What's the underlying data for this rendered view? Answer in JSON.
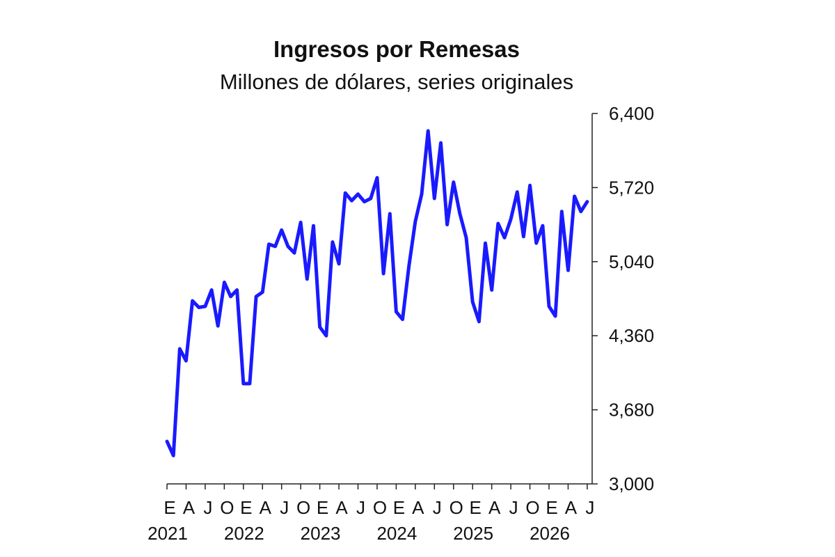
{
  "chart_data": {
    "type": "line",
    "title": "Ingresos por Remesas",
    "subtitle": "Millones de dólares, series originales",
    "xlabel": "",
    "ylabel": "",
    "ylim": [
      3000,
      6400
    ],
    "y_ticks": [
      "3,000",
      "3,680",
      "4,360",
      "5,040",
      "5,720",
      "6,400"
    ],
    "y_tick_values": [
      3000,
      3680,
      4360,
      5040,
      5720,
      6400
    ],
    "axis_side": "right",
    "grid": false,
    "legend": "none",
    "color": "#1a1aff",
    "month_labels": [
      "E",
      "A",
      "J",
      "O",
      "E",
      "A",
      "J",
      "O",
      "E",
      "A",
      "J",
      "O",
      "E",
      "A",
      "J",
      "O",
      "E",
      "A",
      "J",
      "O",
      "E",
      "A",
      "J"
    ],
    "month_label_indices": [
      0,
      3,
      6,
      9,
      12,
      15,
      18,
      21,
      24,
      27,
      30,
      33,
      36,
      39,
      42,
      45,
      48,
      51,
      54,
      57,
      60,
      63,
      66
    ],
    "years": [
      "2021",
      "2022",
      "2023",
      "2024",
      "2025",
      "2026"
    ],
    "year_indices": [
      0,
      12,
      24,
      36,
      48,
      60
    ],
    "series": [
      {
        "values": [
          3390,
          3260,
          4240,
          4130,
          4680,
          4620,
          4630,
          4780,
          4450,
          4850,
          4720,
          4780,
          3920,
          3920,
          4720,
          4760,
          5200,
          5180,
          5330,
          5180,
          5120,
          5400,
          4880,
          5370,
          4440,
          4360,
          5220,
          5020,
          5670,
          5600,
          5660,
          5590,
          5620,
          5810,
          4930,
          5480,
          4580,
          4510,
          5000,
          5410,
          5660,
          6240,
          5620,
          6130,
          5380,
          5770,
          5480,
          5260,
          4670,
          4490,
          5210,
          4780,
          5390,
          5260,
          5430,
          5680,
          5270,
          5740,
          5210,
          5370,
          4630,
          4540,
          5500,
          4960,
          5640,
          5500,
          5590
        ]
      }
    ]
  }
}
